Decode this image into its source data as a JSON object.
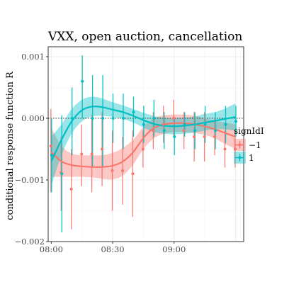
{
  "chart_data": {
    "type": "line",
    "title": "VXX, open auction, cancellation",
    "xlabel": "",
    "ylabel": "conditional response function R",
    "x_ticks": [
      "08:00",
      "08:30",
      "09:00"
    ],
    "x_tick_minutes": [
      0,
      30,
      60
    ],
    "xlim_minutes": [
      -1.5,
      94
    ],
    "y_ticks": [
      "0.001",
      "0.000",
      "−0.001",
      "−0.002"
    ],
    "y_tick_values": [
      0.001,
      0.0,
      -0.001,
      -0.002
    ],
    "ylim": [
      -0.002,
      0.00116
    ],
    "reference_line": 0.0,
    "grid": true,
    "legend": {
      "title": "signIdI",
      "position": "right"
    },
    "series": [
      {
        "name": "−1",
        "color": "#F8766D",
        "points": [
          {
            "x": 0,
            "y": -0.00045,
            "lo": -0.0012,
            "hi": 0.00015
          },
          {
            "x": 5,
            "y": -0.00088,
            "lo": -0.0015,
            "hi": -0.0003
          },
          {
            "x": 10,
            "y": -0.00115,
            "lo": -0.0018,
            "hi": -0.0005
          },
          {
            "x": 15,
            "y": -0.00058,
            "lo": -0.0011,
            "hi": -0.0001
          },
          {
            "x": 20,
            "y": -0.00058,
            "lo": -0.0012,
            "hi": 5e-05
          },
          {
            "x": 25,
            "y": -0.0005,
            "lo": -0.0011,
            "hi": 0.0001
          },
          {
            "x": 30,
            "y": -0.00085,
            "lo": -0.0015,
            "hi": -0.0002
          },
          {
            "x": 35,
            "y": -0.00085,
            "lo": -0.0014,
            "hi": -0.0003
          },
          {
            "x": 40,
            "y": -0.0009,
            "lo": -0.0016,
            "hi": -0.0002
          },
          {
            "x": 45,
            "y": -0.0005,
            "lo": -0.0008,
            "hi": -0.0002
          },
          {
            "x": 50,
            "y": -0.0002,
            "lo": -0.0005,
            "hi": 0.0001
          },
          {
            "x": 55,
            "y": -0.0001,
            "lo": -0.0004,
            "hi": 0.0002
          },
          {
            "x": 60,
            "y": 0.0,
            "lo": -0.0003,
            "hi": 0.0003
          },
          {
            "x": 65,
            "y": -0.0002,
            "lo": -0.0005,
            "hi": 0.0001
          },
          {
            "x": 70,
            "y": -0.0003,
            "lo": -0.0007,
            "hi": 0.0001
          },
          {
            "x": 75,
            "y": -0.0003,
            "lo": -0.0007,
            "hi": 0.0001
          },
          {
            "x": 80,
            "y": -0.0003,
            "lo": -0.0006,
            "hi": 0.0
          },
          {
            "x": 85,
            "y": -0.0005,
            "lo": -0.0008,
            "hi": -0.0002
          },
          {
            "x": 90,
            "y": -0.0005,
            "lo": -0.0008,
            "hi": -0.0002
          }
        ],
        "smooth": [
          {
            "x": 0,
            "y": -0.00055,
            "lo": -0.00095,
            "hi": -0.00015
          },
          {
            "x": 5,
            "y": -0.0007,
            "lo": -0.00095,
            "hi": -0.00045
          },
          {
            "x": 10,
            "y": -0.00076,
            "lo": -0.00095,
            "hi": -0.00057
          },
          {
            "x": 15,
            "y": -0.00078,
            "lo": -0.00095,
            "hi": -0.0006
          },
          {
            "x": 20,
            "y": -0.00079,
            "lo": -0.00096,
            "hi": -0.0006
          },
          {
            "x": 25,
            "y": -0.00079,
            "lo": -0.00098,
            "hi": -0.0006
          },
          {
            "x": 30,
            "y": -0.00077,
            "lo": -0.00099,
            "hi": -0.00056
          },
          {
            "x": 35,
            "y": -0.0007,
            "lo": -0.00093,
            "hi": -0.00048
          },
          {
            "x": 40,
            "y": -0.00055,
            "lo": -0.00075,
            "hi": -0.00035
          },
          {
            "x": 45,
            "y": -0.00032,
            "lo": -0.0005,
            "hi": -0.00014
          },
          {
            "x": 50,
            "y": -0.00016,
            "lo": -0.00033,
            "hi": 0.0
          },
          {
            "x": 55,
            "y": -0.0001,
            "lo": -0.00025,
            "hi": 5e-05
          },
          {
            "x": 60,
            "y": -8e-05,
            "lo": -0.00022,
            "hi": 6e-05
          },
          {
            "x": 65,
            "y": -8e-05,
            "lo": -0.00022,
            "hi": 6e-05
          },
          {
            "x": 70,
            "y": -0.0001,
            "lo": -0.00024,
            "hi": 4e-05
          },
          {
            "x": 75,
            "y": -0.00013,
            "lo": -0.00027,
            "hi": 0.0
          },
          {
            "x": 80,
            "y": -0.00018,
            "lo": -0.00033,
            "hi": -4e-05
          },
          {
            "x": 85,
            "y": -0.00024,
            "lo": -0.00042,
            "hi": -7e-05
          },
          {
            "x": 90,
            "y": -0.0003,
            "lo": -0.0005,
            "hi": -0.0001
          }
        ]
      },
      {
        "name": "1",
        "color": "#00BFC4",
        "points": [
          {
            "x": 0,
            "y": -0.0006,
            "lo": -0.0012,
            "hi": 0.0
          },
          {
            "x": 5,
            "y": -0.0009,
            "lo": -0.00185,
            "hi": 5e-05
          },
          {
            "x": 10,
            "y": 0.0,
            "lo": -0.0006,
            "hi": 0.0005
          },
          {
            "x": 15,
            "y": 0.0006,
            "lo": 0.0,
            "hi": 0.00102
          },
          {
            "x": 20,
            "y": 0.0,
            "lo": -0.0008,
            "hi": 0.0007
          },
          {
            "x": 25,
            "y": 0.0,
            "lo": -0.0008,
            "hi": 0.0007
          },
          {
            "x": 30,
            "y": 0.0,
            "lo": -0.0004,
            "hi": 0.0004
          },
          {
            "x": 35,
            "y": 0.0,
            "lo": -0.0005,
            "hi": 0.0004
          },
          {
            "x": 40,
            "y": 0.0001,
            "lo": -0.0003,
            "hi": 0.00035
          },
          {
            "x": 45,
            "y": -0.0001,
            "lo": -0.0004,
            "hi": 0.0002
          },
          {
            "x": 50,
            "y": 0.0,
            "lo": -0.0003,
            "hi": 0.0003
          },
          {
            "x": 55,
            "y": -0.0002,
            "lo": -0.0005,
            "hi": 0.0001
          },
          {
            "x": 60,
            "y": -0.0003,
            "lo": -0.0006,
            "hi": 0.0
          },
          {
            "x": 65,
            "y": -0.0001,
            "lo": -0.0003,
            "hi": 0.0001
          },
          {
            "x": 70,
            "y": -0.0002,
            "lo": -0.0005,
            "hi": 0.0001
          },
          {
            "x": 75,
            "y": -0.0001,
            "lo": -0.0004,
            "hi": 0.0002
          },
          {
            "x": 80,
            "y": -0.0002,
            "lo": -0.0005,
            "hi": 0.0001
          },
          {
            "x": 85,
            "y": -0.0001,
            "lo": -0.0004,
            "hi": 0.0002
          },
          {
            "x": 90,
            "y": -5e-05,
            "lo": -0.0003,
            "hi": 0.0002
          }
        ],
        "smooth": [
          {
            "x": 0,
            "y": -0.0007,
            "lo": -0.0011,
            "hi": -0.0003
          },
          {
            "x": 5,
            "y": -0.00035,
            "lo": -0.0006,
            "hi": -0.0001
          },
          {
            "x": 10,
            "y": -5e-05,
            "lo": -0.00025,
            "hi": 0.00015
          },
          {
            "x": 15,
            "y": 0.00013,
            "lo": -5e-05,
            "hi": 0.0003
          },
          {
            "x": 20,
            "y": 0.00019,
            "lo": 3e-05,
            "hi": 0.00035
          },
          {
            "x": 25,
            "y": 0.00018,
            "lo": 4e-05,
            "hi": 0.00032
          },
          {
            "x": 30,
            "y": 0.00014,
            "lo": 2e-05,
            "hi": 0.00026
          },
          {
            "x": 35,
            "y": 0.0001,
            "lo": -1e-05,
            "hi": 0.00021
          },
          {
            "x": 40,
            "y": 4e-05,
            "lo": -7e-05,
            "hi": 0.00015
          },
          {
            "x": 45,
            "y": -3e-05,
            "lo": -0.00015,
            "hi": 9e-05
          },
          {
            "x": 50,
            "y": -9e-05,
            "lo": -0.00022,
            "hi": 4e-05
          },
          {
            "x": 55,
            "y": -0.00012,
            "lo": -0.00025,
            "hi": 1e-05
          },
          {
            "x": 60,
            "y": -0.00013,
            "lo": -0.00026,
            "hi": 0.0
          },
          {
            "x": 65,
            "y": -0.00012,
            "lo": -0.00025,
            "hi": 1e-05
          },
          {
            "x": 70,
            "y": -0.0001,
            "lo": -0.00023,
            "hi": 3e-05
          },
          {
            "x": 75,
            "y": -7e-05,
            "lo": -0.0002,
            "hi": 7e-05
          },
          {
            "x": 80,
            "y": -4e-05,
            "lo": -0.00018,
            "hi": 0.0001
          },
          {
            "x": 85,
            "y": -1e-05,
            "lo": -0.00018,
            "hi": 0.00016
          },
          {
            "x": 90,
            "y": 2e-05,
            "lo": -0.0002,
            "hi": 0.00024
          }
        ]
      }
    ]
  }
}
